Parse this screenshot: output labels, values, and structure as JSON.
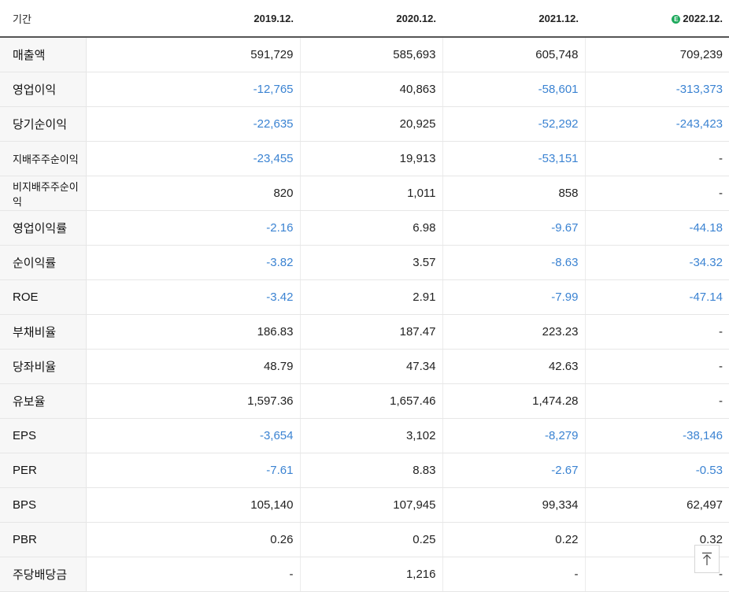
{
  "header": {
    "period_label": "기간",
    "estimate_icon": "e-circle-icon",
    "periods": [
      "2019.12.",
      "2020.12.",
      "2021.12.",
      "2022.12."
    ]
  },
  "rows": [
    {
      "label": "매출액",
      "values": [
        "591,729",
        "585,693",
        "605,748",
        "709,239"
      ],
      "group_start": false
    },
    {
      "label": "영업이익",
      "values": [
        "-12,765",
        "40,863",
        "-58,601",
        "-313,373"
      ],
      "group_start": false
    },
    {
      "label": "당기순이익",
      "values": [
        "-22,635",
        "20,925",
        "-52,292",
        "-243,423"
      ],
      "group_start": false
    },
    {
      "label": "지배주주순이익",
      "values": [
        "-23,455",
        "19,913",
        "-53,151",
        "-"
      ],
      "group_start": false,
      "small": true
    },
    {
      "label": "비지배주주순이익",
      "values": [
        "820",
        "1,011",
        "858",
        "-"
      ],
      "group_start": false,
      "small": true
    },
    {
      "label": "영업이익률",
      "values": [
        "-2.16",
        "6.98",
        "-9.67",
        "-44.18"
      ],
      "group_start": true
    },
    {
      "label": "순이익률",
      "values": [
        "-3.82",
        "3.57",
        "-8.63",
        "-34.32"
      ],
      "group_start": false
    },
    {
      "label": "ROE",
      "values": [
        "-3.42",
        "2.91",
        "-7.99",
        "-47.14"
      ],
      "group_start": false
    },
    {
      "label": "부채비율",
      "values": [
        "186.83",
        "187.47",
        "223.23",
        "-"
      ],
      "group_start": true
    },
    {
      "label": "당좌비율",
      "values": [
        "48.79",
        "47.34",
        "42.63",
        "-"
      ],
      "group_start": false
    },
    {
      "label": "유보율",
      "values": [
        "1,597.36",
        "1,657.46",
        "1,474.28",
        "-"
      ],
      "group_start": false
    },
    {
      "label": "EPS",
      "values": [
        "-3,654",
        "3,102",
        "-8,279",
        "-38,146"
      ],
      "group_start": true
    },
    {
      "label": "PER",
      "values": [
        "-7.61",
        "8.83",
        "-2.67",
        "-0.53"
      ],
      "group_start": false
    },
    {
      "label": "BPS",
      "values": [
        "105,140",
        "107,945",
        "99,334",
        "62,497"
      ],
      "group_start": false
    },
    {
      "label": "PBR",
      "values": [
        "0.26",
        "0.25",
        "0.22",
        "0.32"
      ],
      "group_start": false
    },
    {
      "label": "주당배당금",
      "values": [
        "-",
        "1,216",
        "-",
        "-"
      ],
      "group_start": true
    }
  ],
  "colors": {
    "negative": "#3b83d2",
    "positive": "#222222",
    "estimate_badge": "#1ea95c"
  },
  "scroll_top_button": {
    "icon": "arrow-up-to-top-icon"
  }
}
